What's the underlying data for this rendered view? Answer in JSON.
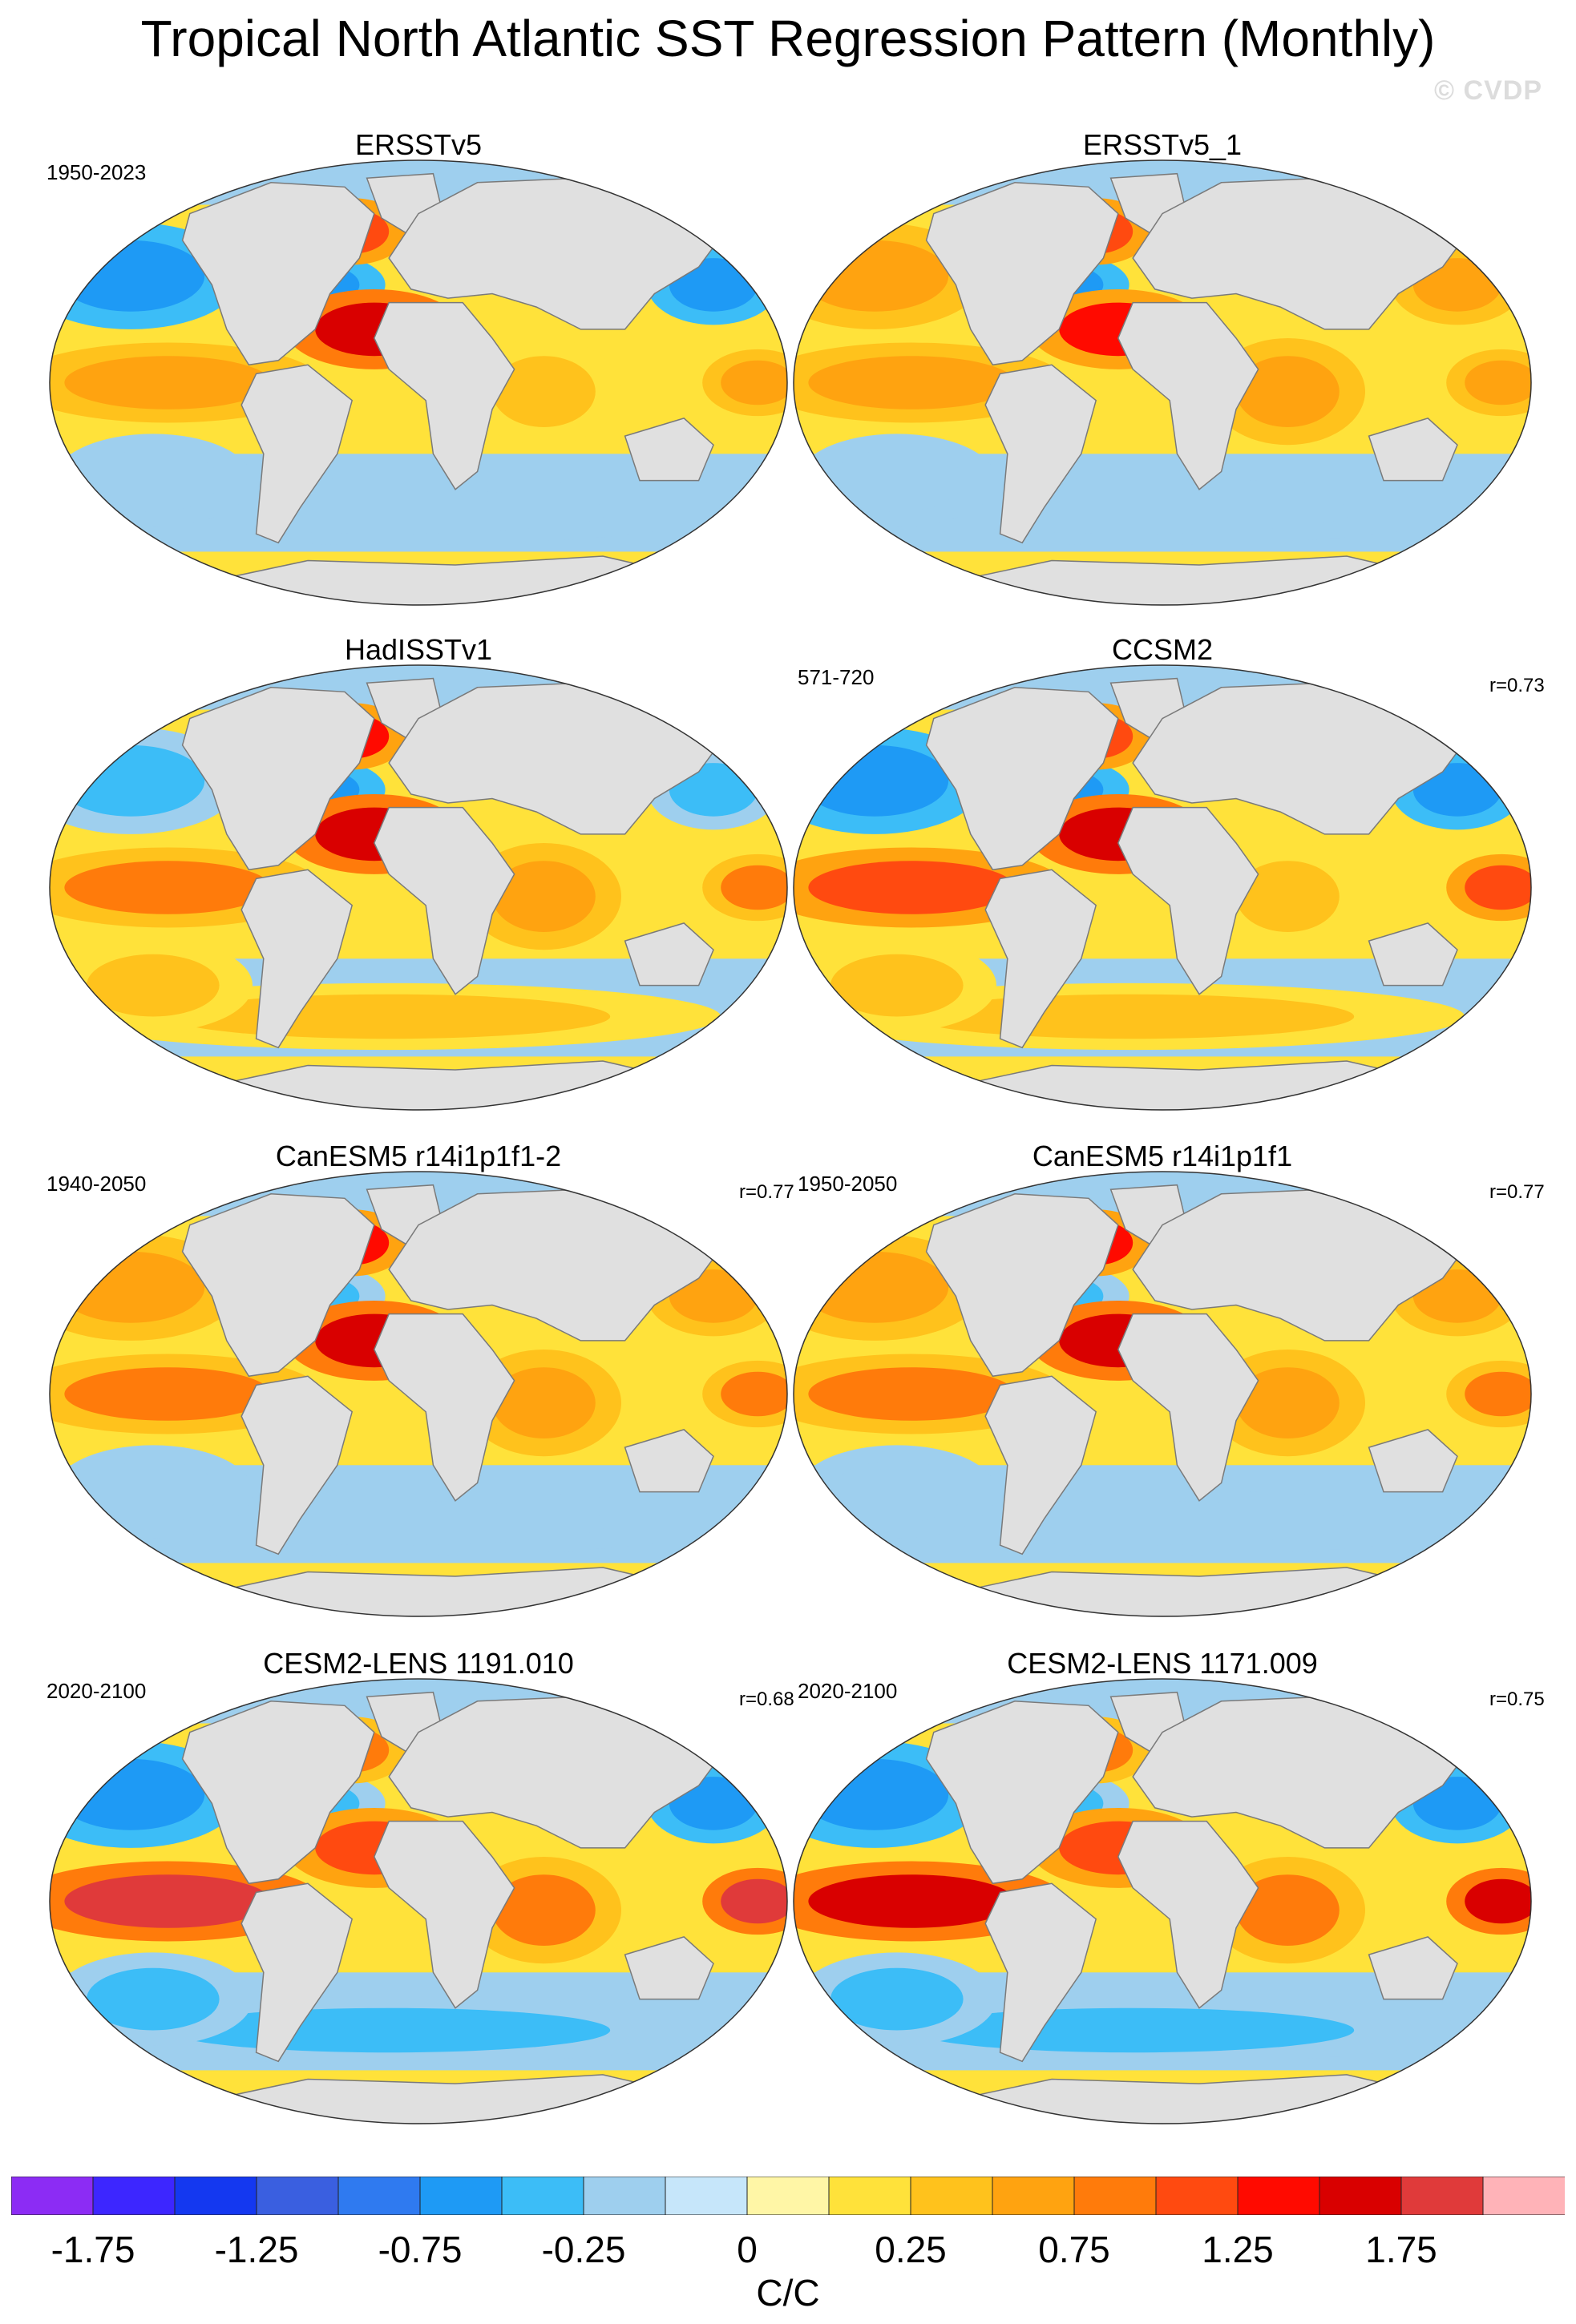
{
  "chart_data": {
    "type": "heatmap",
    "title": "Tropical North Atlantic SST Regression Pattern (Monthly)",
    "watermark": "© CVDP",
    "units": "C/C",
    "colorbar": {
      "boundaries": [
        -2.0,
        -1.75,
        -1.5,
        -1.25,
        -1.0,
        -0.75,
        -0.5,
        -0.25,
        -0.1,
        0,
        0.1,
        0.25,
        0.5,
        0.75,
        1.0,
        1.25,
        1.5,
        1.75,
        2.0
      ],
      "colors": [
        "#8c2cf4",
        "#3d26ff",
        "#1438f0",
        "#3a5fe0",
        "#2f7af0",
        "#1e9af5",
        "#3cbdf7",
        "#9ecfee",
        "#c6e6fa",
        "#fff6a6",
        "#ffe23a",
        "#ffc21c",
        "#ffa310",
        "#ff7b0b",
        "#ff4a10",
        "#ff0a00",
        "#d90000",
        "#e03a3a",
        "#ffb3b8"
      ],
      "tick_labels": [
        "-1.75",
        "-1.25",
        "-0.75",
        "-0.25",
        "0",
        "0.25",
        "0.75",
        "1.25",
        "1.75"
      ],
      "tick_values": [
        -1.75,
        -1.25,
        -0.75,
        -0.25,
        0,
        0.25,
        0.75,
        1.25,
        1.75
      ]
    },
    "panels": [
      {
        "title": "ERSSTv5",
        "period": "1950-2023",
        "r": "",
        "key_regions": {
          "tropical_north_atlantic": 1.5,
          "north_atlantic_subpolar": 1.0,
          "gulf_stream": -0.75,
          "north_pacific_central": -0.75,
          "eastern_tropical_pacific": 0.5,
          "indian_ocean": 0.25,
          "southern_ocean": -0.25
        }
      },
      {
        "title": "ERSSTv5_1",
        "period": "",
        "r": "",
        "key_regions": {
          "tropical_north_atlantic": 1.25,
          "north_atlantic_subpolar": 1.0,
          "gulf_stream": -0.75,
          "north_pacific_central": 0.5,
          "eastern_tropical_pacific": 0.5,
          "indian_ocean": 0.5,
          "southern_ocean": -0.25
        }
      },
      {
        "title": "HadISSTv1",
        "period": "",
        "r": "",
        "key_regions": {
          "tropical_north_atlantic": 1.5,
          "north_atlantic_subpolar": 1.25,
          "gulf_stream": -0.75,
          "north_pacific_central": -0.5,
          "eastern_tropical_pacific": 0.75,
          "indian_ocean": 0.5,
          "southern_ocean": 0.25
        }
      },
      {
        "title": "CCSM2",
        "period": "571-720",
        "r": "r=0.73",
        "key_regions": {
          "tropical_north_atlantic": 1.5,
          "north_atlantic_subpolar": 1.0,
          "gulf_stream": -0.75,
          "north_pacific_central": -0.75,
          "eastern_tropical_pacific": 1.0,
          "indian_ocean": 0.25,
          "southern_ocean": 0.25
        }
      },
      {
        "title": "CanESM5 r14i1p1f1-2",
        "period": "1940-2050",
        "r": "r=0.77",
        "key_regions": {
          "tropical_north_atlantic": 1.5,
          "north_atlantic_subpolar": 1.25,
          "gulf_stream": -0.5,
          "north_pacific_central": 0.5,
          "eastern_tropical_pacific": 0.75,
          "indian_ocean": 0.5,
          "southern_ocean": -0.25
        }
      },
      {
        "title": "CanESM5 r14i1p1f1",
        "period": "1950-2050",
        "r": "r=0.77",
        "key_regions": {
          "tropical_north_atlantic": 1.5,
          "north_atlantic_subpolar": 1.25,
          "gulf_stream": -0.5,
          "north_pacific_central": 0.5,
          "eastern_tropical_pacific": 0.75,
          "indian_ocean": 0.5,
          "southern_ocean": -0.25
        }
      },
      {
        "title": "CESM2-LENS 1191.010",
        "period": "2020-2100",
        "r": "r=0.68",
        "key_regions": {
          "tropical_north_atlantic": 1.0,
          "north_atlantic_subpolar": 0.75,
          "gulf_stream": -0.5,
          "north_pacific_central": -0.75,
          "eastern_tropical_pacific": 1.75,
          "indian_ocean": 0.75,
          "southern_ocean": -0.5
        }
      },
      {
        "title": "CESM2-LENS 1171.009",
        "period": "2020-2100",
        "r": "r=0.75",
        "key_regions": {
          "tropical_north_atlantic": 1.0,
          "north_atlantic_subpolar": 0.75,
          "gulf_stream": -0.5,
          "north_pacific_central": -0.75,
          "eastern_tropical_pacific": 1.5,
          "indian_ocean": 0.75,
          "southern_ocean": -0.5
        }
      }
    ]
  }
}
